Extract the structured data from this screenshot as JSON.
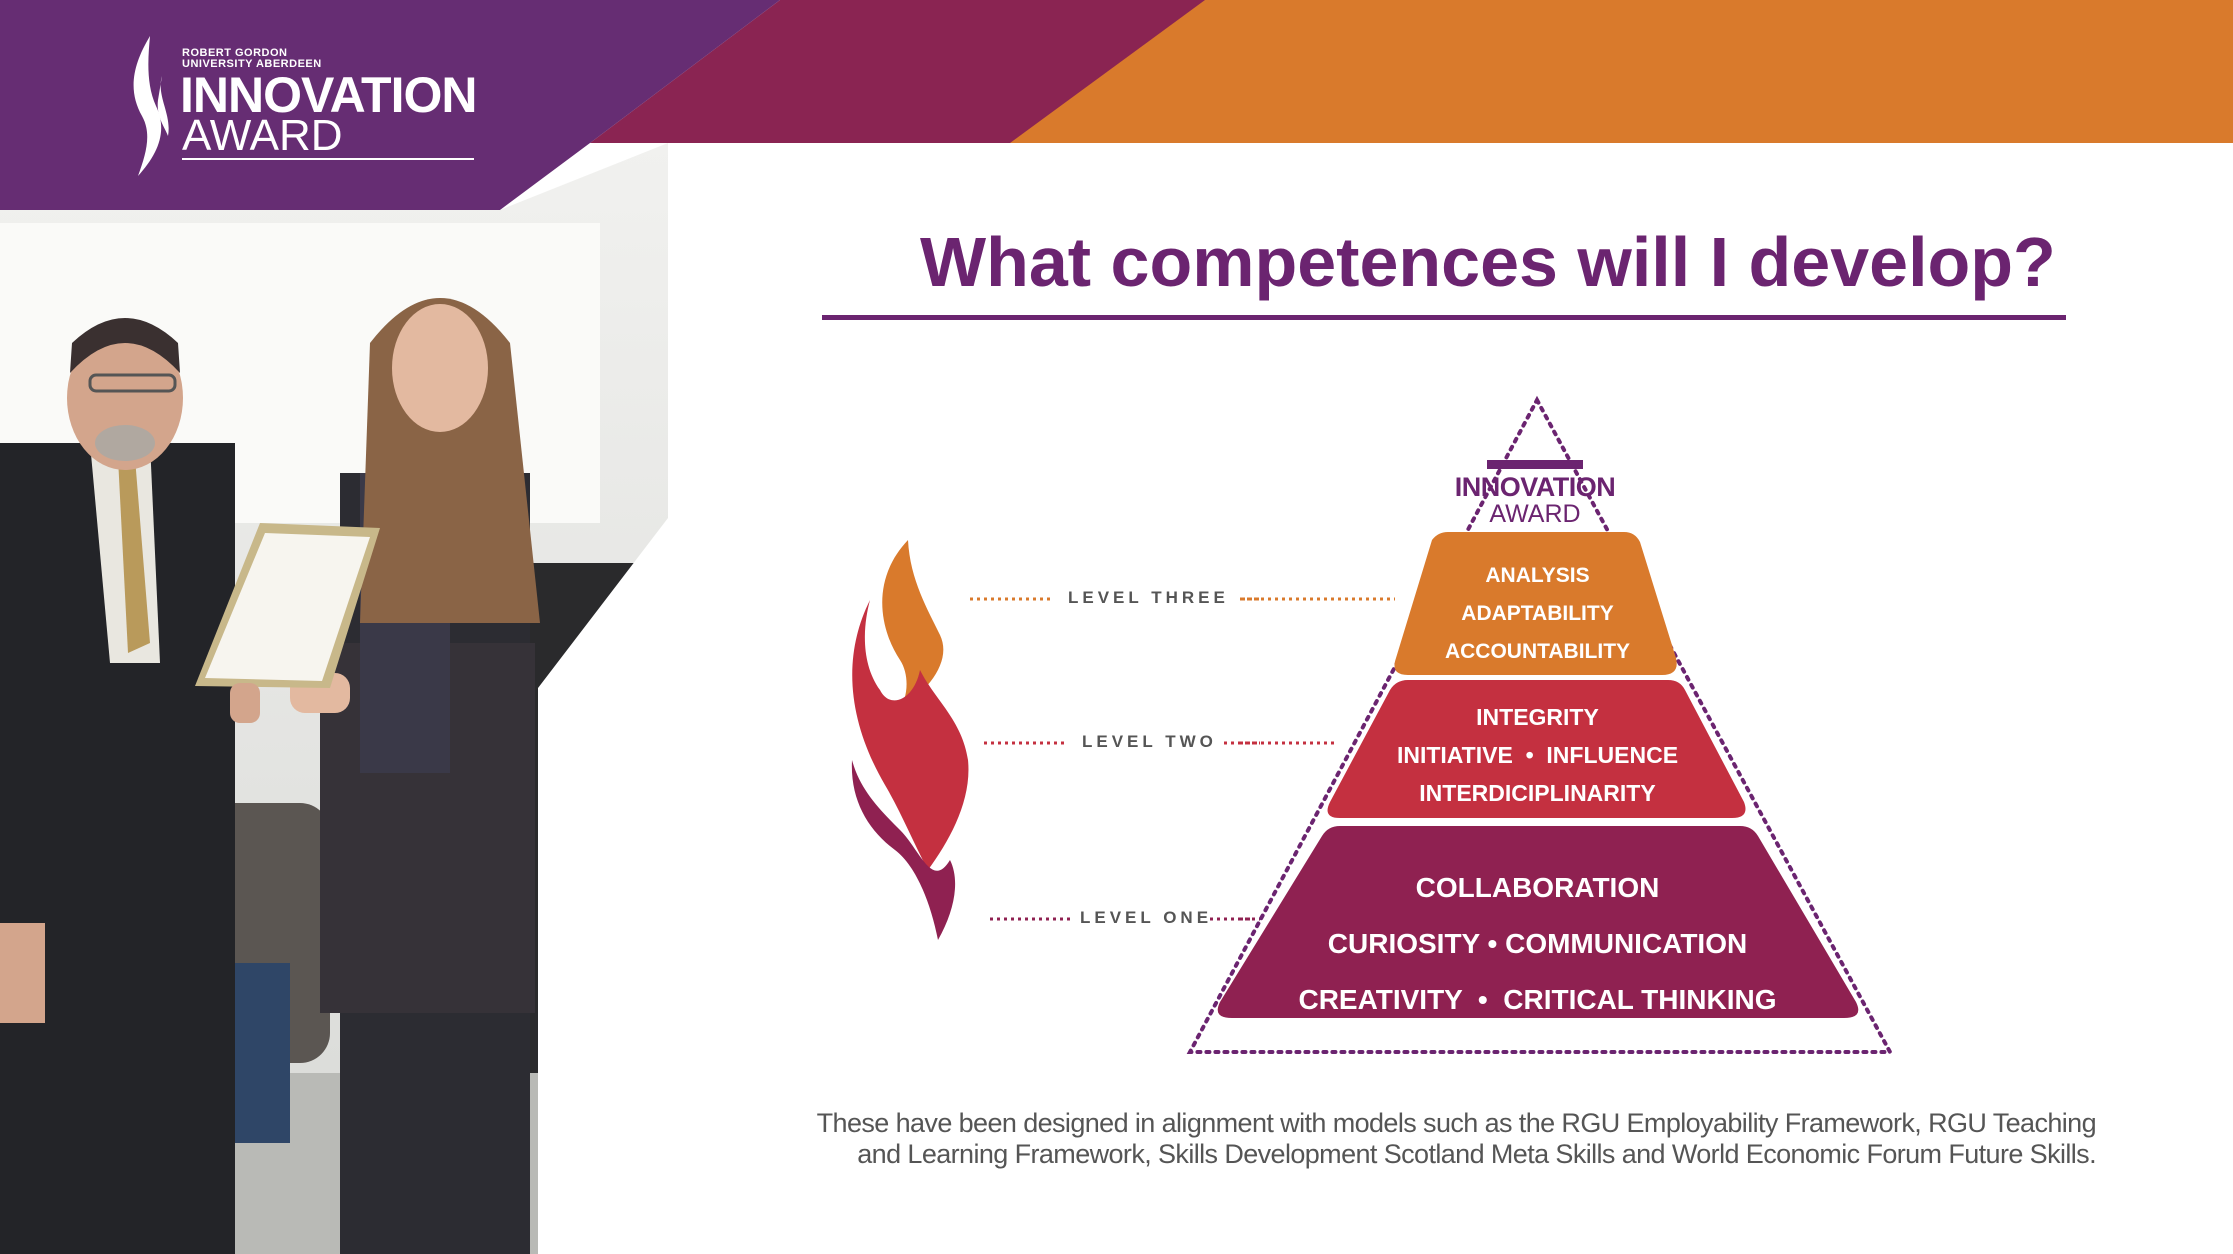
{
  "logo": {
    "org_line1": "ROBERT GORDON",
    "org_line2": "UNIVERSITY ABERDEEN",
    "name_bold": "INNOVATION",
    "name_light": "AWARD"
  },
  "page_title": "What competences will I develop?",
  "pyramid": {
    "logo_name_bold": "INNOVATION",
    "logo_name_light": "AWARD",
    "levels": [
      {
        "label": "LEVEL THREE",
        "color": "#d97a2c",
        "lines": [
          "ANALYSIS",
          "ADAPTABILITY",
          "ACCOUNTABILITY"
        ]
      },
      {
        "label": "LEVEL TWO",
        "color": "#c43040",
        "lines": [
          "INTEGRITY",
          "INITIATIVE  •  INFLUENCE",
          "INTERDICIPLINARITY"
        ]
      },
      {
        "label": "LEVEL ONE",
        "color": "#8f2151",
        "lines": [
          "COLLABORATION",
          "CURIOSITY • COMMUNICATION",
          "CREATIVITY  •  CRITICAL THINKING"
        ]
      }
    ]
  },
  "footnote": {
    "line1": "These have been designed in alignment with models such as the RGU Employability Framework, RGU Teaching",
    "line2": "and Learning Framework, Skills Development Scotland Meta Skills and World Economic Forum Future Skills."
  },
  "colors": {
    "purple": "#662d73",
    "maroon": "#8a2452",
    "orange": "#d97a2c",
    "title": "#6b2470"
  }
}
